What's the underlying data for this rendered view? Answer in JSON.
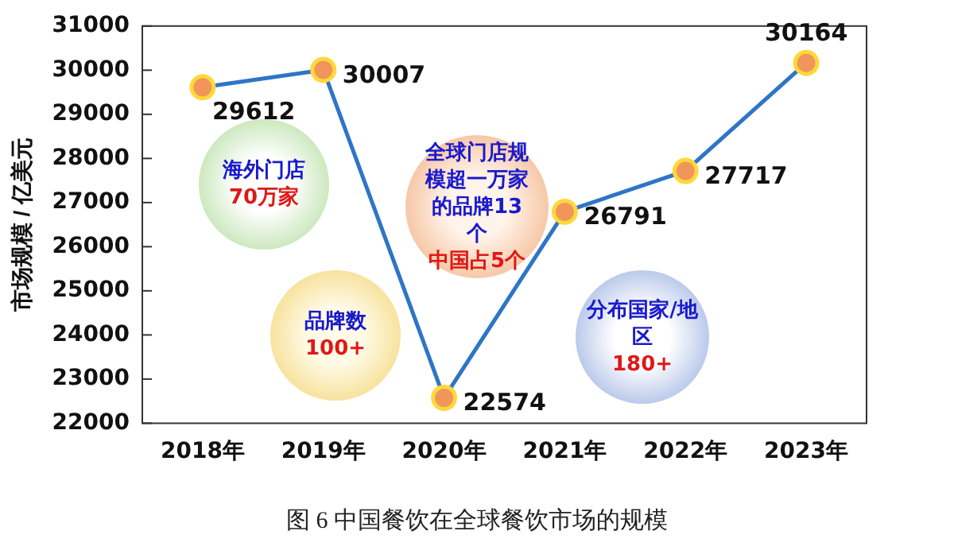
{
  "chart_data": {
    "type": "line",
    "ylabel": "市场规模 / 亿美元",
    "categories": [
      "2018年",
      "2019年",
      "2020年",
      "2021年",
      "2022年",
      "2023年"
    ],
    "series": [
      {
        "color": "#2e75c6",
        "values": [
          29612,
          30007,
          22574,
          26791,
          27717,
          30164
        ]
      }
    ],
    "ylim": [
      22000,
      31000
    ],
    "yticks": [
      22000,
      23000,
      24000,
      25000,
      26000,
      27000,
      28000,
      29000,
      30000,
      31000
    ],
    "grid": false,
    "legend": false,
    "marker": "circle",
    "line_style": "solid",
    "data_labels": true,
    "annotations": [
      "海外门店",
      "70万家",
      "全球门店规模超一万家的品牌13个",
      "中国占5个",
      "品牌数",
      "100+",
      "分布国家/地区",
      "180+",
      "图 6 中国餐饮在全球餐饮市场的规模"
    ]
  }
}
